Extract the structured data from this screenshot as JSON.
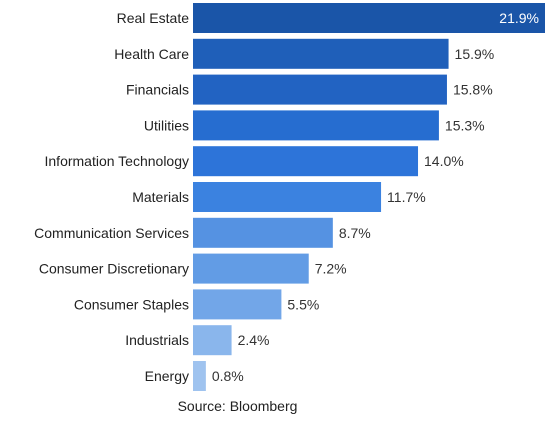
{
  "chart_data": {
    "type": "bar",
    "orientation": "horizontal",
    "categories": [
      "Real Estate",
      "Health Care",
      "Financials",
      "Utilities",
      "Information Technology",
      "Materials",
      "Communication Services",
      "Consumer Discretionary",
      "Consumer Staples",
      "Industrials",
      "Energy"
    ],
    "values": [
      21.9,
      15.9,
      15.8,
      15.3,
      14.0,
      11.7,
      8.7,
      7.2,
      5.5,
      2.4,
      0.8
    ],
    "value_labels": [
      "21.9%",
      "15.9%",
      "15.8%",
      "15.3%",
      "14.0%",
      "11.7%",
      "8.7%",
      "7.2%",
      "5.5%",
      "2.4%",
      "0.8%"
    ],
    "xlim": [
      0,
      21.9
    ],
    "grid": false,
    "legend": "none",
    "colors": [
      "#1a55a8",
      "#1f5fb9",
      "#2263c2",
      "#266dd0",
      "#2d74d9",
      "#3b82e0",
      "#5592e2",
      "#629ce5",
      "#72a6e8",
      "#8ab6ec",
      "#9fc3ef"
    ]
  },
  "source": "Source: Bloomberg"
}
